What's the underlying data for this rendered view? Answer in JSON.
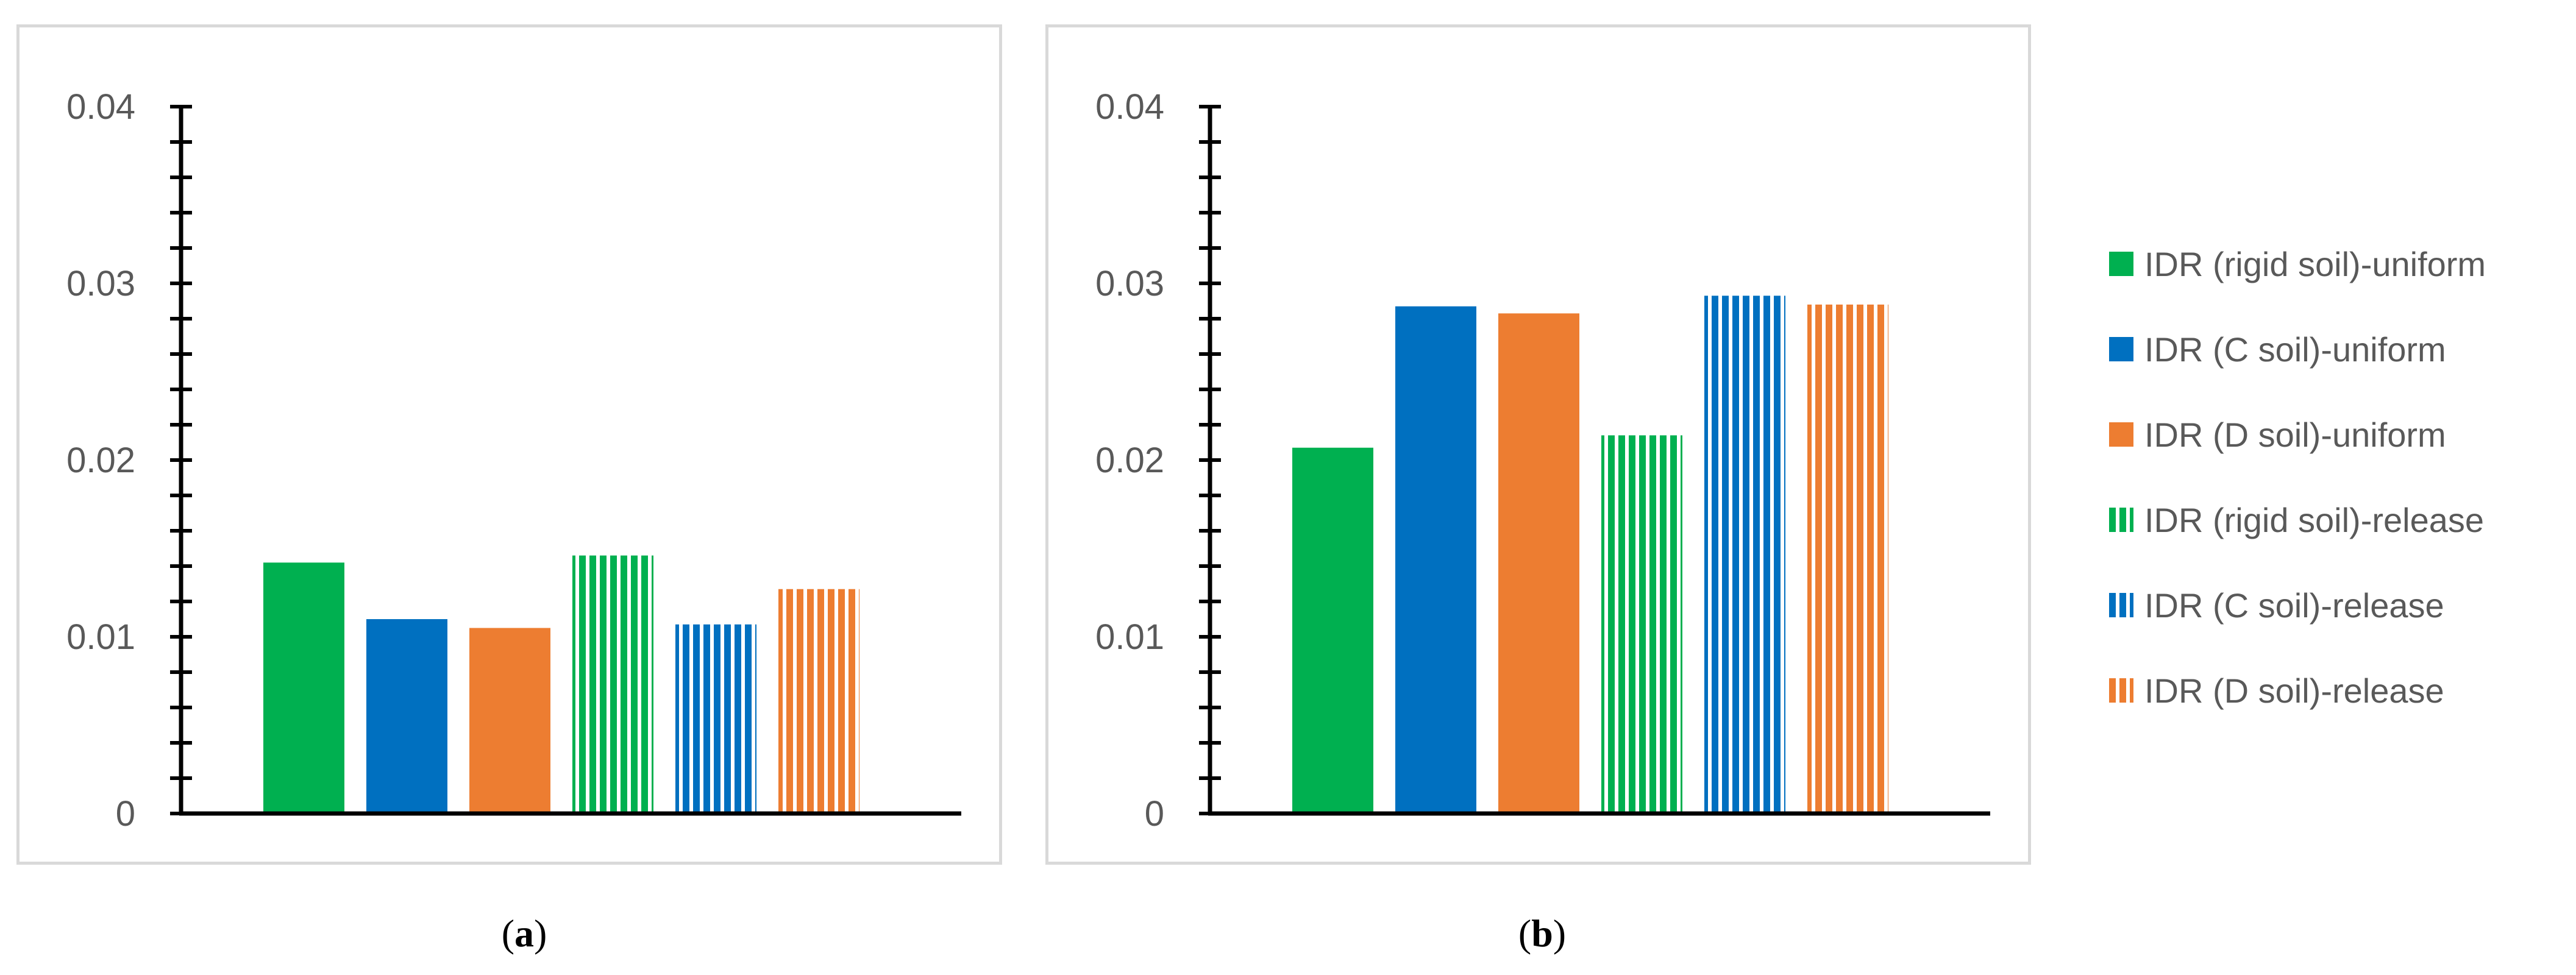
{
  "chart_data": [
    {
      "type": "bar",
      "panel": "a",
      "title": "",
      "xlabel": "",
      "ylabel": "",
      "ylim": [
        0,
        0.04
      ],
      "yticks": [
        "0",
        "0.01",
        "0.02",
        "0.03",
        "0.04"
      ],
      "grid": false,
      "series": [
        {
          "name": "IDR (rigid soil)-uniform",
          "values": [
            0.0142
          ]
        },
        {
          "name": "IDR (C soil)-uniform",
          "values": [
            0.011
          ]
        },
        {
          "name": "IDR (D soil)-uniform",
          "values": [
            0.0105
          ]
        },
        {
          "name": "IDR (rigid soil)-release",
          "values": [
            0.0146
          ]
        },
        {
          "name": "IDR (C soil)-release",
          "values": [
            0.0107
          ]
        },
        {
          "name": "IDR (D soil)-release",
          "values": [
            0.0127
          ]
        }
      ]
    },
    {
      "type": "bar",
      "panel": "b",
      "title": "",
      "xlabel": "",
      "ylabel": "",
      "ylim": [
        0,
        0.04
      ],
      "yticks": [
        "0",
        "0.01",
        "0.02",
        "0.03",
        "0.04"
      ],
      "grid": false,
      "series": [
        {
          "name": "IDR (rigid soil)-uniform",
          "values": [
            0.0207
          ]
        },
        {
          "name": "IDR (C soil)-uniform",
          "values": [
            0.0287
          ]
        },
        {
          "name": "IDR (D soil)-uniform",
          "values": [
            0.0283
          ]
        },
        {
          "name": "IDR (rigid soil)-release",
          "values": [
            0.0214
          ]
        },
        {
          "name": "IDR (C soil)-release",
          "values": [
            0.0293
          ]
        },
        {
          "name": "IDR (D soil)-release",
          "values": [
            0.0288
          ]
        }
      ]
    }
  ],
  "legend": {
    "position": "right",
    "items": [
      {
        "label": "IDR (rigid soil)-uniform",
        "color": "#00b050",
        "pattern": "solid"
      },
      {
        "label": "IDR (C soil)-uniform",
        "color": "#0070c0",
        "pattern": "solid"
      },
      {
        "label": "IDR (D soil)-uniform",
        "color": "#ed7d31",
        "pattern": "solid"
      },
      {
        "label": "IDR (rigid soil)-release",
        "color": "#00b050",
        "pattern": "vertical-stripes"
      },
      {
        "label": "IDR (C soil)-release",
        "color": "#0070c0",
        "pattern": "vertical-stripes"
      },
      {
        "label": "IDR (D soil)-release",
        "color": "#ed7d31",
        "pattern": "vertical-stripes"
      }
    ]
  },
  "captions": {
    "a": {
      "open": "(",
      "letter": "a",
      "close": ")"
    },
    "b": {
      "open": "(",
      "letter": "b",
      "close": ")"
    }
  }
}
